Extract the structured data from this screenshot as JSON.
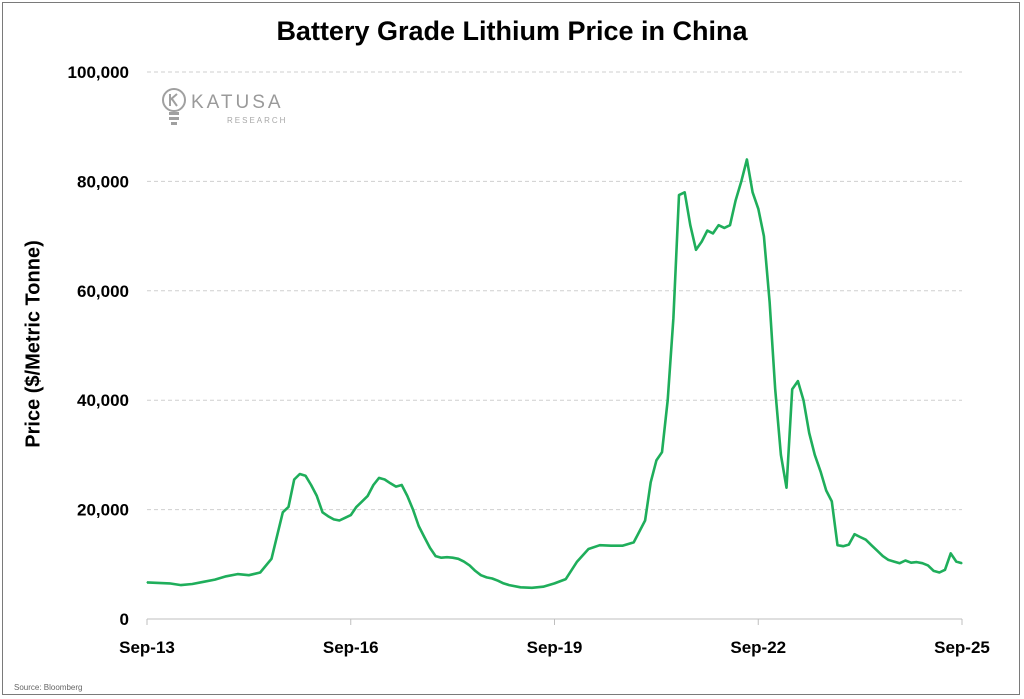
{
  "source": "Source: Bloomberg",
  "logo": {
    "name": "KATUSA",
    "sub": "RESEARCH",
    "icon": "lightbulb-icon"
  },
  "chart_data": {
    "type": "line",
    "title": "Battery Grade Lithium Price in China",
    "xlabel": "",
    "ylabel": "Price ($/Metric Tonne)",
    "ylim": [
      0,
      100000
    ],
    "yticks": [
      0,
      20000,
      40000,
      60000,
      80000,
      100000
    ],
    "ytick_labels": [
      "0",
      "20,000",
      "40,000",
      "60,000",
      "80,000",
      "100,000"
    ],
    "xlim": [
      "2013-09",
      "2025-09"
    ],
    "xtick_labels": [
      "Sep-13",
      "Sep-16",
      "Sep-19",
      "Sep-22",
      "Sep-25"
    ],
    "grid": "horizontal dashed",
    "color": "#1fae5b",
    "series": [
      {
        "x": [
          "2013-09",
          "2013-11",
          "2014-01",
          "2014-03",
          "2014-05",
          "2014-07",
          "2014-09",
          "2014-11",
          "2015-01",
          "2015-03",
          "2015-05",
          "2015-07",
          "2015-09",
          "2015-10",
          "2015-11",
          "2015-12",
          "2016-01",
          "2016-02",
          "2016-03",
          "2016-04",
          "2016-05",
          "2016-06",
          "2016-07",
          "2016-08",
          "2016-09",
          "2016-10",
          "2016-11",
          "2016-12",
          "2017-01",
          "2017-02",
          "2017-03",
          "2017-04",
          "2017-05",
          "2017-06",
          "2017-07",
          "2017-08",
          "2017-09",
          "2017-10",
          "2017-11",
          "2017-12",
          "2018-01",
          "2018-02",
          "2018-03",
          "2018-04",
          "2018-05",
          "2018-06",
          "2018-07",
          "2018-08",
          "2018-09",
          "2018-10",
          "2018-11",
          "2018-12",
          "2019-01",
          "2019-03",
          "2019-05",
          "2019-07",
          "2019-09",
          "2019-11",
          "2020-01",
          "2020-03",
          "2020-05",
          "2020-07",
          "2020-09",
          "2020-11",
          "2021-01",
          "2021-02",
          "2021-03",
          "2021-04",
          "2021-05",
          "2021-06",
          "2021-07",
          "2021-08",
          "2021-09",
          "2021-10",
          "2021-11",
          "2021-12",
          "2022-01",
          "2022-02",
          "2022-03",
          "2022-04",
          "2022-05",
          "2022-06",
          "2022-07",
          "2022-08",
          "2022-09",
          "2022-10",
          "2022-11",
          "2022-12",
          "2023-01",
          "2023-02",
          "2023-03",
          "2023-04",
          "2023-05",
          "2023-06",
          "2023-07",
          "2023-08",
          "2023-09",
          "2023-10",
          "2023-11",
          "2023-12",
          "2024-01",
          "2024-02",
          "2024-03",
          "2024-04",
          "2024-05",
          "2024-06",
          "2024-07",
          "2024-08",
          "2024-09",
          "2024-10",
          "2024-11",
          "2024-12",
          "2025-01",
          "2025-02",
          "2025-03",
          "2025-04",
          "2025-05",
          "2025-06",
          "2025-07",
          "2025-08",
          "2025-09"
        ],
        "y": [
          6700,
          6600,
          6500,
          6200,
          6400,
          6800,
          7200,
          7800,
          8200,
          8000,
          8500,
          11000,
          19500,
          20500,
          25500,
          26500,
          26200,
          24500,
          22500,
          19500,
          18800,
          18200,
          18000,
          18500,
          19000,
          20500,
          21500,
          22500,
          24500,
          25800,
          25500,
          24800,
          24200,
          24500,
          22500,
          20000,
          17000,
          15000,
          13000,
          11500,
          11200,
          11300,
          11200,
          11000,
          10500,
          9800,
          8800,
          8000,
          7600,
          7400,
          7000,
          6500,
          6200,
          5800,
          5700,
          5900,
          6500,
          7300,
          10500,
          12800,
          13500,
          13400,
          13400,
          14000,
          18000,
          25000,
          29000,
          30500,
          40000,
          55000,
          77500,
          78000,
          72000,
          67500,
          69000,
          71000,
          70500,
          72000,
          71500,
          72000,
          76500,
          80000,
          84000,
          78000,
          75000,
          70000,
          58000,
          42000,
          30000,
          24000,
          42000,
          43500,
          40000,
          34000,
          30000,
          27000,
          23500,
          21500,
          13500,
          13300,
          13600,
          15500,
          15000,
          14500,
          13500,
          12500,
          11500,
          10800,
          10500,
          10200,
          10700,
          10300,
          10400,
          10200,
          9800,
          8800,
          8500,
          9000,
          12000,
          10500,
          10200
        ]
      }
    ]
  }
}
